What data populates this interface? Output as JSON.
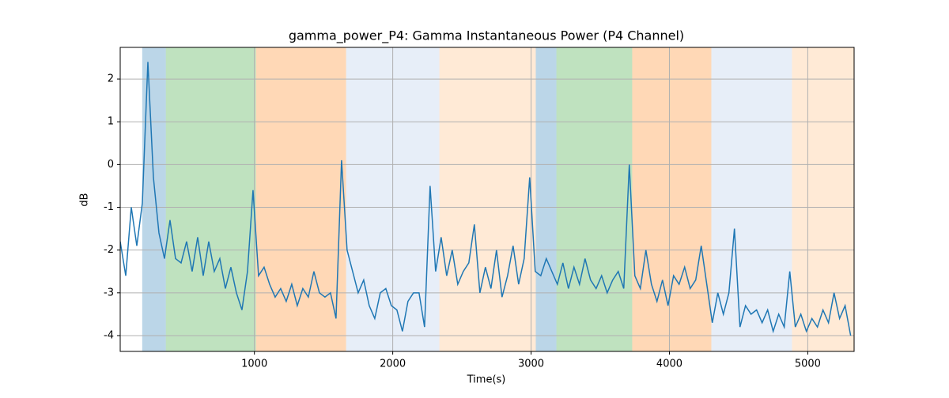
{
  "chart_data": {
    "type": "line",
    "title": "gamma_power_P4: Gamma Instantaneous Power (P4 Channel)",
    "xlabel": "Time(s)",
    "ylabel": "dB",
    "x": [
      30,
      70,
      110,
      150,
      190,
      230,
      270,
      310,
      350,
      390,
      430,
      470,
      510,
      550,
      590,
      630,
      670,
      710,
      750,
      790,
      830,
      870,
      910,
      950,
      990,
      1030,
      1070,
      1110,
      1150,
      1190,
      1230,
      1270,
      1310,
      1350,
      1390,
      1430,
      1470,
      1510,
      1550,
      1590,
      1630,
      1670,
      1710,
      1750,
      1790,
      1830,
      1870,
      1910,
      1950,
      1990,
      2030,
      2070,
      2110,
      2150,
      2190,
      2230,
      2270,
      2310,
      2350,
      2390,
      2430,
      2470,
      2510,
      2550,
      2590,
      2630,
      2670,
      2710,
      2750,
      2790,
      2830,
      2870,
      2910,
      2950,
      2990,
      3030,
      3070,
      3110,
      3150,
      3190,
      3230,
      3270,
      3310,
      3350,
      3390,
      3430,
      3470,
      3510,
      3550,
      3590,
      3630,
      3670,
      3710,
      3750,
      3790,
      3830,
      3870,
      3910,
      3950,
      3990,
      4030,
      4070,
      4110,
      4150,
      4190,
      4230,
      4270,
      4310,
      4350,
      4390,
      4430,
      4470,
      4510,
      4550,
      4590,
      4630,
      4670,
      4710,
      4750,
      4790,
      4830,
      4870,
      4910,
      4950,
      4990,
      5030,
      5070,
      5110,
      5150,
      5190,
      5230,
      5270,
      5310
    ],
    "values": [
      -1.8,
      -2.6,
      -1.0,
      -1.9,
      -0.9,
      2.4,
      -0.3,
      -1.6,
      -2.2,
      -1.3,
      -2.2,
      -2.3,
      -1.8,
      -2.5,
      -1.7,
      -2.6,
      -1.8,
      -2.5,
      -2.2,
      -2.9,
      -2.4,
      -3.0,
      -3.4,
      -2.5,
      -0.6,
      -2.6,
      -2.4,
      -2.8,
      -3.1,
      -2.9,
      -3.2,
      -2.8,
      -3.3,
      -2.9,
      -3.1,
      -2.5,
      -3.0,
      -3.1,
      -3.0,
      -3.6,
      0.1,
      -2.0,
      -2.5,
      -3.0,
      -2.7,
      -3.3,
      -3.6,
      -3.0,
      -2.9,
      -3.3,
      -3.4,
      -3.9,
      -3.2,
      -3.0,
      -3.0,
      -3.8,
      -0.5,
      -2.5,
      -1.7,
      -2.6,
      -2.0,
      -2.8,
      -2.5,
      -2.3,
      -1.4,
      -3.0,
      -2.4,
      -2.9,
      -2.0,
      -3.1,
      -2.6,
      -1.9,
      -2.8,
      -2.2,
      -0.3,
      -2.5,
      -2.6,
      -2.2,
      -2.5,
      -2.8,
      -2.3,
      -2.9,
      -2.4,
      -2.8,
      -2.2,
      -2.7,
      -2.9,
      -2.6,
      -3.0,
      -2.7,
      -2.5,
      -2.9,
      0.0,
      -2.6,
      -2.9,
      -2.0,
      -2.8,
      -3.2,
      -2.7,
      -3.3,
      -2.6,
      -2.8,
      -2.4,
      -2.9,
      -2.7,
      -1.9,
      -2.8,
      -3.7,
      -3.0,
      -3.5,
      -3.0,
      -1.5,
      -3.8,
      -3.3,
      -3.5,
      -3.4,
      -3.7,
      -3.4,
      -3.9,
      -3.5,
      -3.8,
      -2.5,
      -3.8,
      -3.5,
      -3.9,
      -3.6,
      -3.8,
      -3.4,
      -3.7,
      -3.0,
      -3.6,
      -3.3,
      -4.0
    ],
    "color": "#1f77b4",
    "spans": [
      {
        "start": 189,
        "end": 360,
        "color": "#1f77b4",
        "opacity": 0.3
      },
      {
        "start": 360,
        "end": 1011,
        "color": "#2ca02c",
        "opacity": 0.3
      },
      {
        "start": 1011,
        "end": 1663,
        "color": "#ff7f0e",
        "opacity": 0.3
      },
      {
        "start": 1663,
        "end": 2337,
        "color": "#aec7e8",
        "opacity": 0.3
      },
      {
        "start": 2337,
        "end": 3034,
        "color": "#ffbb78",
        "opacity": 0.3
      },
      {
        "start": 3034,
        "end": 3183,
        "color": "#1f77b4",
        "opacity": 0.3
      },
      {
        "start": 3183,
        "end": 3731,
        "color": "#2ca02c",
        "opacity": 0.3
      },
      {
        "start": 3731,
        "end": 4303,
        "color": "#ff7f0e",
        "opacity": 0.3
      },
      {
        "start": 4303,
        "end": 4886,
        "color": "#aec7e8",
        "opacity": 0.3
      },
      {
        "start": 4886,
        "end": 5335,
        "color": "#ffbb78",
        "opacity": 0.3
      }
    ],
    "xlim": [
      30,
      5335
    ],
    "ylim": [
      -4.37,
      2.74
    ],
    "xticks": [
      1000,
      2000,
      3000,
      4000,
      5000
    ],
    "yticks": [
      -4,
      -3,
      -2,
      -1,
      0,
      1,
      2
    ],
    "grid": true
  }
}
